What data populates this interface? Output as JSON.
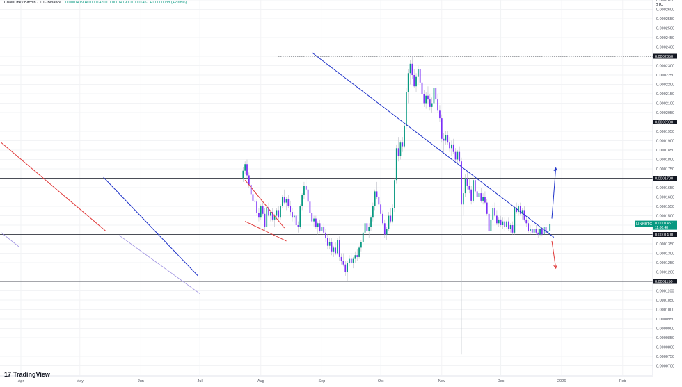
{
  "header": {
    "symbol": "ChainLink / Bitcoin · 1D · Binance",
    "ohlc": "O0.0001419 H0.0001470 L0.0001419 C0.0001457 +0.0000038 (+2.68%)"
  },
  "brand": {
    "logo_text": "TradingView",
    "logo_mark": "17"
  },
  "colors": {
    "up": "#089981",
    "down": "#7b2ff7",
    "trend_blue": "#1f33c9",
    "trend_red": "#e03a3a",
    "level": "#131722"
  },
  "chart_data": {
    "type": "candlestick",
    "symbol": "LINKBTC",
    "price_axis_unit": "BTC",
    "ylim": [
      6.5e-05,
      0.000265
    ],
    "y_ticks": [
      "0.0002650",
      "0.0002600",
      "0.0002550",
      "0.0002500",
      "0.0002450",
      "0.0002400",
      "0.0002350",
      "0.0002300",
      "0.0002250",
      "0.0002200",
      "0.0002150",
      "0.0002100",
      "0.0002050",
      "0.0002000",
      "0.0001950",
      "0.0001900",
      "0.0001850",
      "0.0001800",
      "0.0001750",
      "0.0001700",
      "0.0001650",
      "0.0001600",
      "0.0001550",
      "0.0001500",
      "0.0001450",
      "0.0001400",
      "0.0001350",
      "0.0001300",
      "0.0001250",
      "0.0001200",
      "0.0001150",
      "0.0001100",
      "0.0001050",
      "0.0001000",
      "0.0000950",
      "0.0000900",
      "0.0000850",
      "0.0000800",
      "0.0000750",
      "0.0000700"
    ],
    "x_ticks": [
      "Apr",
      "May",
      "Jun",
      "Jul",
      "Aug",
      "Sep",
      "Oct",
      "Nov",
      "Dec",
      "2026",
      "Feb"
    ],
    "x_tick_days": [
      0,
      30,
      61,
      91,
      122,
      153,
      183,
      214,
      244,
      275,
      306
    ],
    "last_day": 269,
    "right_day": 330,
    "horizontal_levels": [
      {
        "price": 0.000235,
        "label": "0.0002350",
        "style": "dotted"
      },
      {
        "price": 0.0002,
        "label": "0.0002000",
        "style": "solid"
      },
      {
        "price": 0.00017,
        "label": "0.0001700",
        "style": "solid"
      },
      {
        "price": 0.00014,
        "label": "0.0001400",
        "style": "solid"
      },
      {
        "price": 0.000115,
        "label": "0.0001150",
        "style": "solid"
      }
    ],
    "current_price": {
      "label": "LINKBTC",
      "value": "0.0001457",
      "countdown": "11:06:48",
      "price": 0.0001457
    },
    "trendlines": [
      {
        "color": "red",
        "points": [
          [
            -10,
            0.000189
          ],
          [
            43,
            0.000142
          ]
        ]
      },
      {
        "color": "purple",
        "points": [
          [
            -10,
            0.000141
          ],
          [
            -1,
            0.0001335
          ]
        ]
      },
      {
        "color": "blue",
        "points": [
          [
            42,
            0.0001705
          ],
          [
            90,
            0.000118
          ]
        ]
      },
      {
        "color": "purple",
        "points": [
          [
            50,
            0.0001395
          ],
          [
            91,
            0.0001085
          ]
        ]
      },
      {
        "color": "red",
        "points": [
          [
            114,
            0.000169
          ],
          [
            134,
            0.0001435
          ]
        ]
      },
      {
        "color": "red",
        "points": [
          [
            114,
            0.000147
          ],
          [
            135,
            0.0001365
          ]
        ]
      },
      {
        "color": "blue",
        "points": [
          [
            148,
            0.000237
          ],
          [
            271,
            0.0001385
          ]
        ]
      }
    ],
    "arrows": [
      {
        "color": "blue",
        "from": [
          270,
          0.0001485
        ],
        "to": [
          272,
          0.0001755
        ]
      },
      {
        "color": "red",
        "from": [
          270,
          0.0001365
        ],
        "to": [
          272,
          0.000122
        ]
      }
    ],
    "candles": [
      [
        0.00017,
        0.000176,
        0.000168,
        0.000174
      ],
      [
        0.000174,
        0.000179,
        0.000172,
        0.0001775
      ],
      [
        0.0001775,
        0.00018,
        0.00017,
        0.0001715
      ],
      [
        0.0001715,
        0.000173,
        0.000165,
        0.0001665
      ],
      [
        0.0001665,
        0.000168,
        0.00016,
        0.0001615
      ],
      [
        0.0001615,
        0.000164,
        0.000156,
        0.000158
      ],
      [
        0.000158,
        0.000161,
        0.000155,
        0.0001575
      ],
      [
        0.0001575,
        0.000159,
        0.00015,
        0.0001515
      ],
      [
        0.0001515,
        0.000154,
        0.000147,
        0.000149
      ],
      [
        0.000149,
        0.000156,
        0.000148,
        0.000155
      ],
      [
        0.000155,
        0.000157,
        0.00015,
        0.000151
      ],
      [
        0.000151,
        0.000154,
        0.000142,
        0.000144
      ],
      [
        0.000144,
        0.000156,
        0.000143,
        0.0001545
      ],
      [
        0.0001545,
        0.000157,
        0.000149,
        0.00015
      ],
      [
        0.00015,
        0.000153,
        0.000147,
        0.000152
      ],
      [
        0.000152,
        0.000154,
        0.000147,
        0.000148
      ],
      [
        0.000148,
        0.000151,
        0.000144,
        0.00015
      ],
      [
        0.00015,
        0.000154,
        0.000148,
        0.000153
      ],
      [
        0.000153,
        0.000155,
        0.000148,
        0.000149
      ],
      [
        0.000149,
        0.000156,
        0.000148,
        0.000155
      ],
      [
        0.000155,
        0.000161,
        0.000154,
        0.00016
      ],
      [
        0.00016,
        0.000164,
        0.000156,
        0.000157
      ],
      [
        0.000157,
        0.00016,
        0.000153,
        0.000159
      ],
      [
        0.000159,
        0.000161,
        0.000154,
        0.000155
      ],
      [
        0.000155,
        0.000158,
        0.00015,
        0.000152
      ],
      [
        0.000152,
        0.000154,
        0.000147,
        0.000149
      ],
      [
        0.000149,
        0.000152,
        0.000146,
        0.00015
      ],
      [
        0.00015,
        0.000152,
        0.000144,
        0.000145
      ],
      [
        0.000145,
        0.000147,
        0.000141,
        0.000144
      ],
      [
        0.000144,
        0.000156,
        0.000143,
        0.000155
      ],
      [
        0.000155,
        0.000162,
        0.000153,
        0.000161
      ],
      [
        0.000161,
        0.000168,
        0.000159,
        0.000166
      ],
      [
        0.000166,
        0.00017,
        0.000163,
        0.000164
      ],
      [
        0.000164,
        0.000166,
        0.000156,
        0.0001575
      ],
      [
        0.0001575,
        0.000159,
        0.00015,
        0.0001515
      ],
      [
        0.0001515,
        0.000153,
        0.000146,
        0.000147
      ],
      [
        0.000147,
        0.00015,
        0.000144,
        0.0001485
      ],
      [
        0.0001485,
        0.00015,
        0.000143,
        0.000144
      ],
      [
        0.000144,
        0.000147,
        0.00014,
        0.000146
      ],
      [
        0.000146,
        0.000148,
        0.000141,
        0.000142
      ],
      [
        0.000142,
        0.000145,
        0.000138,
        0.000144
      ],
      [
        0.000144,
        0.000146,
        0.00014,
        0.000141
      ],
      [
        0.000141,
        0.000143,
        0.000136,
        0.000138
      ],
      [
        0.000138,
        0.00014,
        0.000132,
        0.000134
      ],
      [
        0.000134,
        0.000138,
        0.000132,
        0.000136
      ],
      [
        0.000136,
        0.000138,
        0.000129,
        0.000131
      ],
      [
        0.000131,
        0.000134,
        0.000128,
        0.000133
      ],
      [
        0.000133,
        0.000136,
        0.000129,
        0.00013
      ],
      [
        0.00013,
        0.000138,
        0.000129,
        0.000137
      ],
      [
        0.000137,
        0.000139,
        0.000126,
        0.000128
      ],
      [
        0.000128,
        0.00013,
        0.000124,
        0.000126
      ],
      [
        0.000126,
        0.00013,
        0.000123,
        0.000124
      ],
      [
        0.000124,
        0.000126,
        0.000118,
        0.00012
      ],
      [
        0.00012,
        0.000126,
        0.000115,
        0.000125
      ],
      [
        0.000125,
        0.000129,
        0.000123,
        0.000127
      ],
      [
        0.000127,
        0.00013,
        0.000124,
        0.000125
      ],
      [
        0.000125,
        0.000128,
        0.000122,
        0.000127
      ],
      [
        0.000127,
        0.000131,
        0.000125,
        0.000129
      ],
      [
        0.000129,
        0.000132,
        0.000126,
        0.000128
      ],
      [
        0.000128,
        0.000134,
        0.000127,
        0.000133
      ],
      [
        0.000133,
        0.000137,
        0.000131,
        0.000136
      ],
      [
        0.000136,
        0.000142,
        0.000134,
        0.000141
      ],
      [
        0.000141,
        0.000148,
        0.000138,
        0.000146
      ],
      [
        0.000146,
        0.00015,
        0.00014,
        0.000142
      ],
      [
        0.000142,
        0.000146,
        0.000138,
        0.000144
      ],
      [
        0.000144,
        0.00015,
        0.000142,
        0.000149
      ],
      [
        0.000149,
        0.000157,
        0.000147,
        0.000155
      ],
      [
        0.000155,
        0.000164,
        0.000153,
        0.000163
      ],
      [
        0.000163,
        0.000168,
        0.000159,
        0.00016
      ],
      [
        0.00016,
        0.000162,
        0.000154,
        0.000156
      ],
      [
        0.000156,
        0.000158,
        0.00015,
        0.000151
      ],
      [
        0.000151,
        0.000153,
        0.000145,
        0.000146
      ],
      [
        0.000146,
        0.000148,
        0.000138,
        0.00014
      ],
      [
        0.00014,
        0.000144,
        0.000137,
        0.000143
      ],
      [
        0.000143,
        0.000152,
        0.000142,
        0.00015
      ],
      [
        0.00015,
        0.000154,
        0.000146,
        0.000147
      ],
      [
        0.000147,
        0.000156,
        0.000146,
        0.000154
      ],
      [
        0.000154,
        0.00017,
        0.000152,
        0.000169
      ],
      [
        0.000169,
        0.000188,
        0.000167,
        0.000186
      ],
      [
        0.000186,
        0.000192,
        0.000179,
        0.000182
      ],
      [
        0.000182,
        0.00019,
        0.00018,
        0.000189
      ],
      [
        0.000189,
        0.000192,
        0.000184,
        0.000187
      ],
      [
        0.000187,
        0.000199,
        0.000186,
        0.000198
      ],
      [
        0.000198,
        0.000218,
        0.000196,
        0.000216
      ],
      [
        0.000216,
        0.000228,
        0.00021,
        0.000226
      ],
      [
        0.000226,
        0.000233,
        0.00022,
        0.000231
      ],
      [
        0.000231,
        0.000235,
        0.000223,
        0.000225
      ],
      [
        0.000225,
        0.000228,
        0.000218,
        0.000219
      ],
      [
        0.000219,
        0.000226,
        0.000216,
        0.000224
      ],
      [
        0.000224,
        0.00023,
        0.00022,
        0.000228
      ],
      [
        0.000228,
        0.000238,
        0.000219,
        0.000221
      ],
      [
        0.000221,
        0.000224,
        0.000213,
        0.000215
      ],
      [
        0.000215,
        0.000217,
        0.000208,
        0.00021
      ],
      [
        0.00021,
        0.000216,
        0.000207,
        0.000214
      ],
      [
        0.000214,
        0.000219,
        0.00021,
        0.000212
      ],
      [
        0.000212,
        0.000215,
        0.000206,
        0.000208
      ],
      [
        0.000208,
        0.000213,
        0.000205,
        0.00021
      ],
      [
        0.00021,
        0.000219,
        0.000209,
        0.000218
      ],
      [
        0.000218,
        0.00022,
        0.00021,
        0.000212
      ],
      [
        0.000212,
        0.000215,
        0.000205,
        0.000206
      ],
      [
        0.000206,
        0.000209,
        0.0002,
        0.000202
      ],
      [
        0.000202,
        0.000204,
        0.000189,
        0.000191
      ],
      [
        0.000191,
        0.000194,
        0.000183,
        0.00019
      ],
      [
        0.00019,
        0.000195,
        0.000188,
        0.000193
      ],
      [
        0.000193,
        0.000195,
        0.000188,
        0.000189
      ],
      [
        0.000189,
        0.000192,
        0.000184,
        0.000186
      ],
      [
        0.000186,
        0.00019,
        0.000182,
        0.000188
      ],
      [
        0.000188,
        0.000191,
        0.000183,
        0.000184
      ],
      [
        0.000184,
        0.000186,
        0.000178,
        0.00018
      ],
      [
        0.00018,
        0.000185,
        0.000178,
        0.000184
      ],
      [
        0.000184,
        0.000187,
        0.000178,
        0.000179
      ],
      [
        0.000179,
        0.000181,
        7.6e-05,
        0.000156
      ],
      [
        0.000156,
        0.000165,
        0.00015,
        0.000162
      ],
      [
        0.000162,
        0.000172,
        0.00016,
        0.00017
      ],
      [
        0.00017,
        0.000173,
        0.000164,
        0.000166
      ],
      [
        0.000166,
        0.00017,
        0.000162,
        0.000164
      ],
      [
        0.000164,
        0.000166,
        0.000156,
        0.000158
      ],
      [
        0.000158,
        0.00017,
        0.000157,
        0.000169
      ],
      [
        0.000169,
        0.000171,
        0.000162,
        0.000163
      ],
      [
        0.000163,
        0.000165,
        0.000159,
        0.00016
      ],
      [
        0.00016,
        0.000164,
        0.000158,
        0.000162
      ],
      [
        0.000162,
        0.000165,
        0.000157,
        0.000158
      ],
      [
        0.000158,
        0.000162,
        0.000156,
        0.00016
      ],
      [
        0.00016,
        0.000163,
        0.000156,
        0.000157
      ],
      [
        0.000157,
        0.000159,
        0.00015,
        0.000151
      ],
      [
        0.000151,
        0.000153,
        0.000139,
        0.000142
      ],
      [
        0.000142,
        0.00015,
        0.000141,
        0.000148
      ],
      [
        0.000148,
        0.000156,
        0.000146,
        0.000154
      ],
      [
        0.000154,
        0.000157,
        0.000149,
        0.00015
      ],
      [
        0.00015,
        0.000153,
        0.000145,
        0.000146
      ],
      [
        0.000146,
        0.000149,
        0.000144,
        0.000148
      ],
      [
        0.000148,
        0.00015,
        0.000144,
        0.000145
      ],
      [
        0.000145,
        0.000149,
        0.000143,
        0.000147
      ],
      [
        0.000147,
        0.000149,
        0.000142,
        0.000144
      ],
      [
        0.000144,
        0.000148,
        0.000143,
        0.000147
      ],
      [
        0.000147,
        0.000149,
        0.000142,
        0.000143
      ],
      [
        0.000143,
        0.000146,
        0.000141,
        0.000145
      ],
      [
        0.000145,
        0.000147,
        0.00014,
        0.000141
      ],
      [
        0.000141,
        0.000155,
        0.00014,
        0.000154
      ],
      [
        0.000154,
        0.000157,
        0.000151,
        0.000152
      ],
      [
        0.000152,
        0.000156,
        0.00015,
        0.000155
      ],
      [
        0.000155,
        0.000157,
        0.00015,
        0.000151
      ],
      [
        0.000151,
        0.000154,
        0.000148,
        0.000153
      ],
      [
        0.000153,
        0.000155,
        0.000147,
        0.000148
      ],
      [
        0.000148,
        0.00015,
        0.000144,
        0.000146
      ],
      [
        0.000146,
        0.000148,
        0.000141,
        0.000142
      ],
      [
        0.000142,
        0.000145,
        0.00014,
        0.000143
      ],
      [
        0.000143,
        0.000145,
        0.00014,
        0.000141
      ],
      [
        0.000141,
        0.000144,
        0.000139,
        0.000143
      ],
      [
        0.000143,
        0.000145,
        0.00014,
        0.000141
      ],
      [
        0.000141,
        0.000143,
        0.000138,
        0.00014
      ],
      [
        0.00014,
        0.000144,
        0.000139,
        0.000143
      ],
      [
        0.000143,
        0.000144,
        0.000139,
        0.00014
      ],
      [
        0.00014,
        0.000145,
        0.000139,
        0.000144
      ],
      [
        0.000144,
        0.000146,
        0.00014,
        0.000141
      ],
      [
        0.000141,
        0.000143,
        0.000139,
        0.000142
      ],
      [
        0.0001419,
        0.000147,
        0.0001419,
        0.0001457
      ]
    ]
  }
}
